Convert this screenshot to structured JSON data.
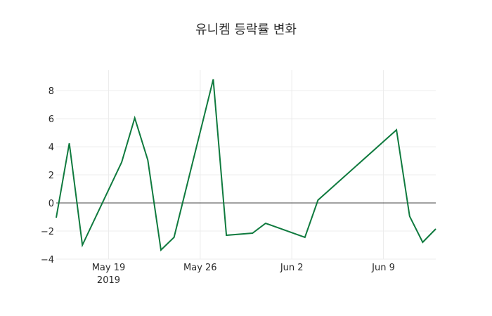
{
  "chart_data": {
    "type": "line",
    "title": "유니켐 등락률 변화",
    "xlabel": "",
    "ylabel": "",
    "ylim": [
      -4,
      9.5
    ],
    "xlim": [
      "2019-05-15",
      "2019-06-13"
    ],
    "grid": true,
    "legend": false,
    "line_color": "#0f7a3e",
    "x_ticks": [
      {
        "date": "2019-05-19",
        "label": "May 19",
        "sublabel": "2019"
      },
      {
        "date": "2019-05-26",
        "label": "May 26",
        "sublabel": ""
      },
      {
        "date": "2019-06-02",
        "label": "Jun 2",
        "sublabel": ""
      },
      {
        "date": "2019-06-09",
        "label": "Jun 9",
        "sublabel": ""
      }
    ],
    "y_ticks": [
      {
        "value": 8,
        "label": "8"
      },
      {
        "value": 6,
        "label": "6"
      },
      {
        "value": 4,
        "label": "4"
      },
      {
        "value": 2,
        "label": "2"
      },
      {
        "value": 0,
        "label": "0"
      },
      {
        "value": -2,
        "label": "−2"
      },
      {
        "value": -4,
        "label": "−4"
      }
    ],
    "series": [
      {
        "name": "등락률",
        "x": [
          "2019-05-15",
          "2019-05-16",
          "2019-05-17",
          "2019-05-20",
          "2019-05-21",
          "2019-05-22",
          "2019-05-23",
          "2019-05-24",
          "2019-05-27",
          "2019-05-28",
          "2019-05-30",
          "2019-05-31",
          "2019-06-03",
          "2019-06-04",
          "2019-06-10",
          "2019-06-11",
          "2019-06-12",
          "2019-06-13"
        ],
        "values": [
          -1.05,
          4.25,
          -3.0,
          2.9,
          6.05,
          3.05,
          -3.35,
          -2.45,
          8.8,
          -2.3,
          -2.15,
          -1.45,
          -2.45,
          0.2,
          5.2,
          -0.95,
          -2.8,
          -1.85
        ]
      }
    ]
  }
}
